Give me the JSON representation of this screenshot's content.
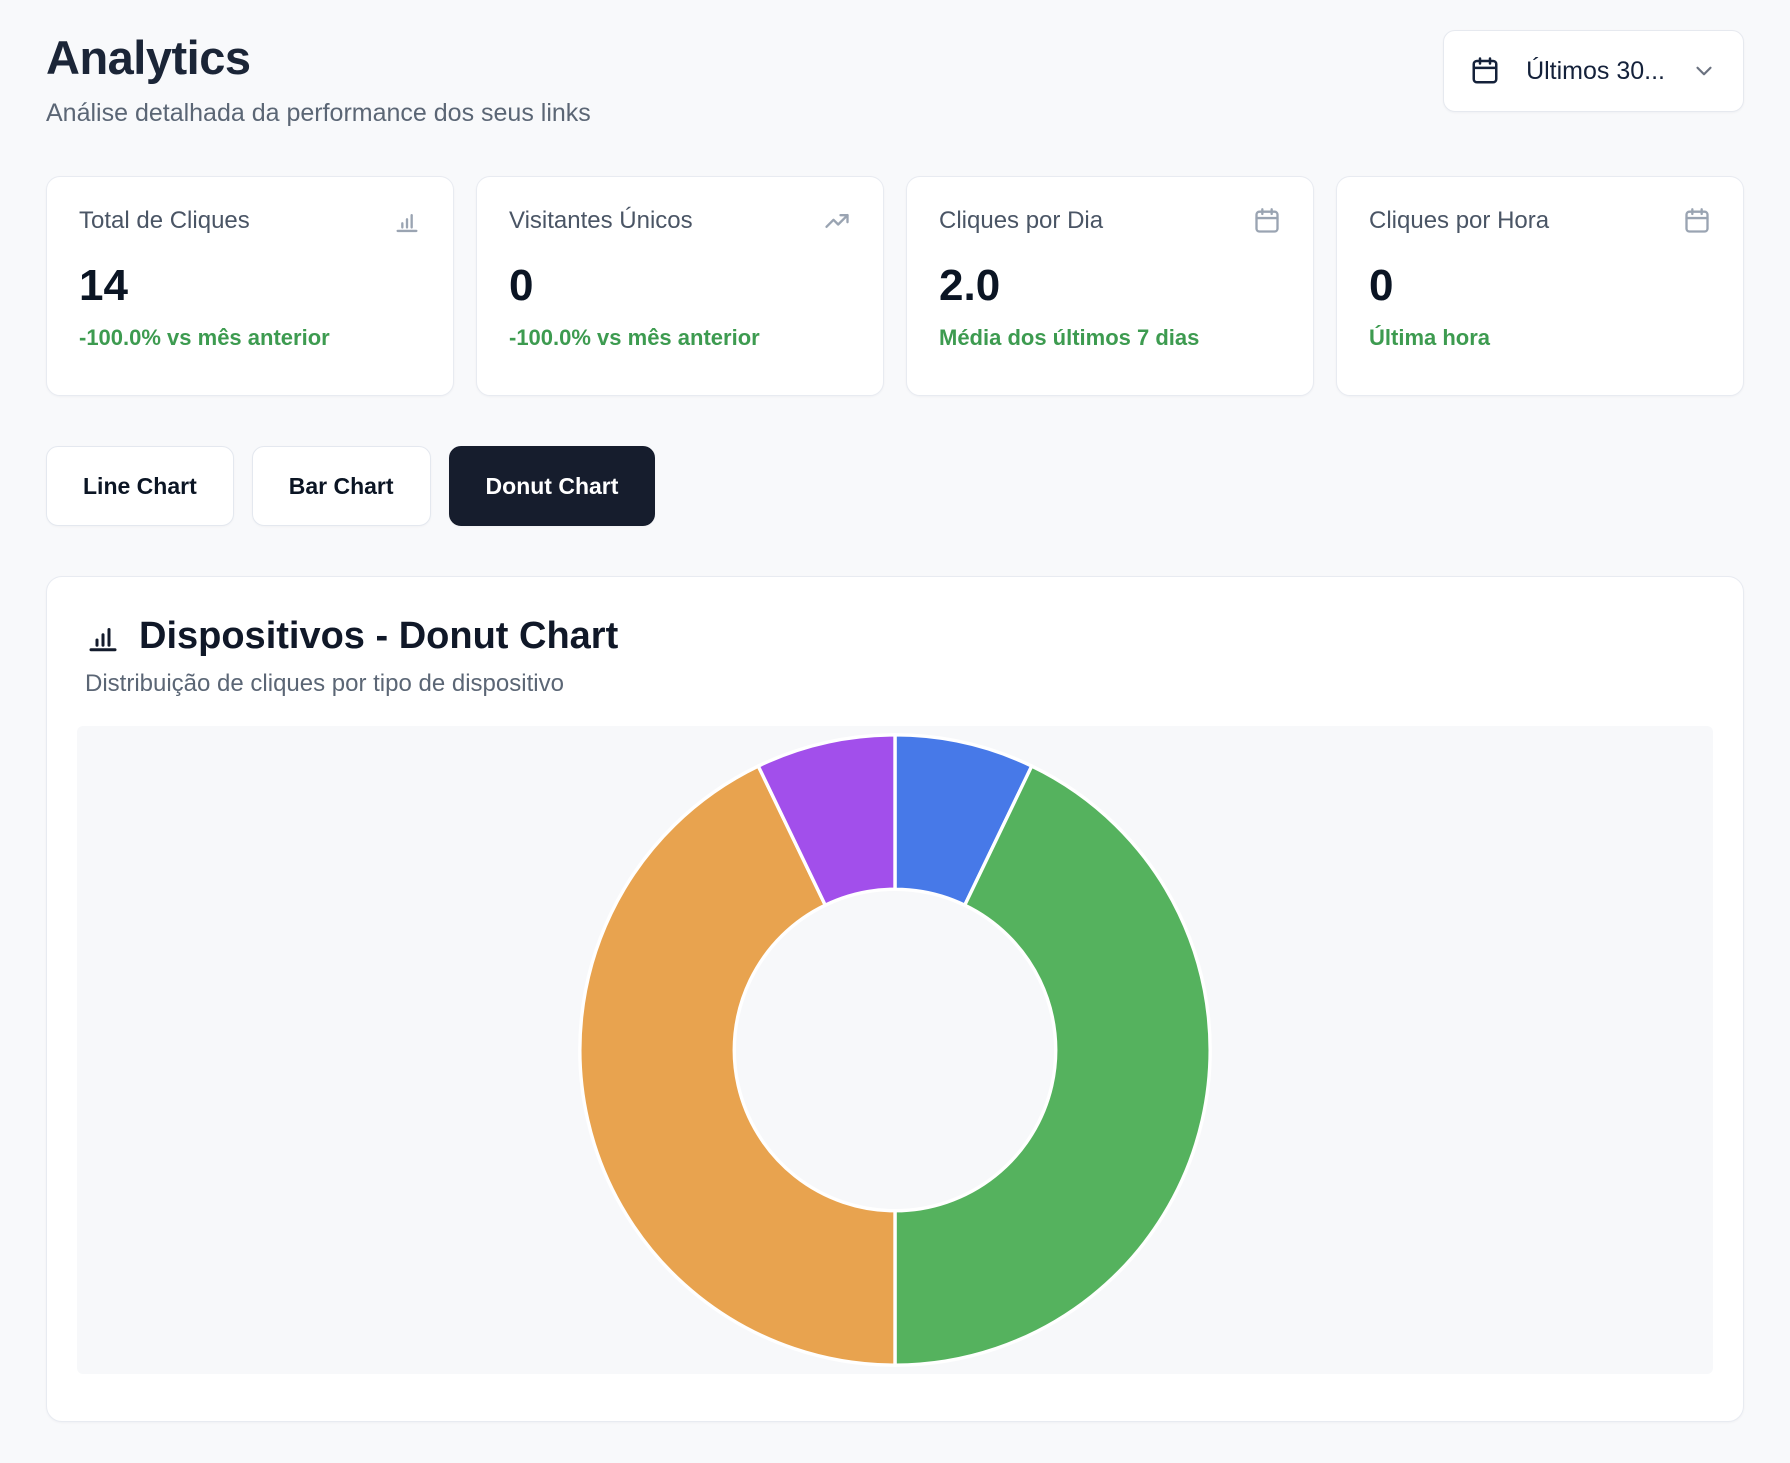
{
  "header": {
    "title": "Analytics",
    "subtitle": "Análise detalhada da performance dos seus links",
    "date_range": {
      "label": "Últimos 30..."
    }
  },
  "stats": [
    {
      "title": "Total de Cliques",
      "icon": "bar-chart-icon",
      "value": "14",
      "note": "-100.0% vs mês anterior"
    },
    {
      "title": "Visitantes Únicos",
      "icon": "trending-up-icon",
      "value": "0",
      "note": "-100.0% vs mês anterior"
    },
    {
      "title": "Cliques por Dia",
      "icon": "calendar-icon",
      "value": "2.0",
      "note": "Média dos últimos 7 dias"
    },
    {
      "title": "Cliques por Hora",
      "icon": "calendar-icon",
      "value": "0",
      "note": "Última hora"
    }
  ],
  "tabs": [
    {
      "label": "Line Chart",
      "active": false
    },
    {
      "label": "Bar Chart",
      "active": false
    },
    {
      "label": "Donut Chart",
      "active": true
    }
  ],
  "chart_card": {
    "title": "Dispositivos - Donut Chart",
    "subtitle": "Distribuição de cliques por tipo de dispositivo"
  },
  "chart_data": {
    "type": "pie",
    "variant": "donut",
    "title": "Dispositivos - Donut Chart",
    "subtitle": "Distribuição de cliques por tipo de dispositivo",
    "legend": false,
    "data_labels": false,
    "start_angle_deg": 0,
    "direction": "clockwise",
    "inner_radius_ratio": 0.51,
    "background": "#F7F8FA",
    "segment_gap_color": "#FFFFFF",
    "segments": [
      {
        "name": "segment-blue",
        "color": "#4779E8",
        "value": 1,
        "share_pct": 7.1
      },
      {
        "name": "segment-green",
        "color": "#55B25E",
        "value": 6,
        "share_pct": 42.9
      },
      {
        "name": "segment-orange",
        "color": "#E8A34F",
        "value": 6,
        "share_pct": 42.9
      },
      {
        "name": "segment-purple",
        "color": "#A24FEB",
        "value": 1,
        "share_pct": 7.1
      }
    ],
    "total": 14
  },
  "colors": {
    "page_bg": "#F8F9FB",
    "card_bg": "#FFFFFF",
    "active_tab_bg": "#161D2D",
    "positive_text": "#3D9B50",
    "muted_text": "#5B6675"
  }
}
